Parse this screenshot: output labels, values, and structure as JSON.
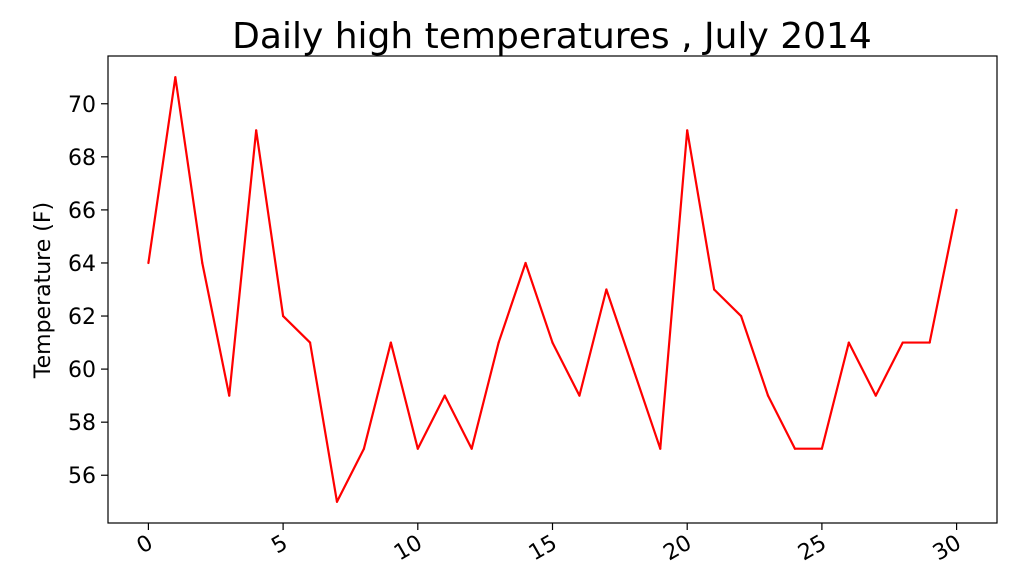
{
  "chart_data": {
    "type": "line",
    "title": "Daily high temperatures , July 2014",
    "xlabel": "",
    "ylabel": "Temperature (F)",
    "x": [
      0,
      1,
      2,
      3,
      4,
      5,
      6,
      7,
      8,
      9,
      10,
      11,
      12,
      13,
      14,
      15,
      16,
      17,
      18,
      19,
      20,
      21,
      22,
      23,
      24,
      25,
      26,
      27,
      28,
      29,
      30
    ],
    "series": [
      {
        "values": [
          64,
          71,
          64,
          59,
          69,
          62,
          61,
          55,
          57,
          61,
          57,
          59,
          57,
          61,
          64,
          61,
          59,
          63,
          60,
          57,
          69,
          63,
          62,
          59,
          57,
          57,
          61,
          59,
          61,
          61,
          66
        ],
        "color": "#ff0000"
      }
    ],
    "xlim": [
      -1.5,
      31.5
    ],
    "ylim": [
      54.2,
      71.8
    ],
    "xticks": [
      0,
      5,
      10,
      15,
      20,
      25,
      30
    ],
    "xtick_labels": [
      "0",
      "5",
      "10",
      "15",
      "20",
      "25",
      "30"
    ],
    "yticks": [
      56,
      58,
      60,
      62,
      64,
      66,
      68,
      70
    ],
    "ytick_labels": [
      "56",
      "58",
      "60",
      "62",
      "64",
      "66",
      "68",
      "70"
    ],
    "xtick_rotation": "30 degrees",
    "grid": false,
    "legend": "none"
  }
}
